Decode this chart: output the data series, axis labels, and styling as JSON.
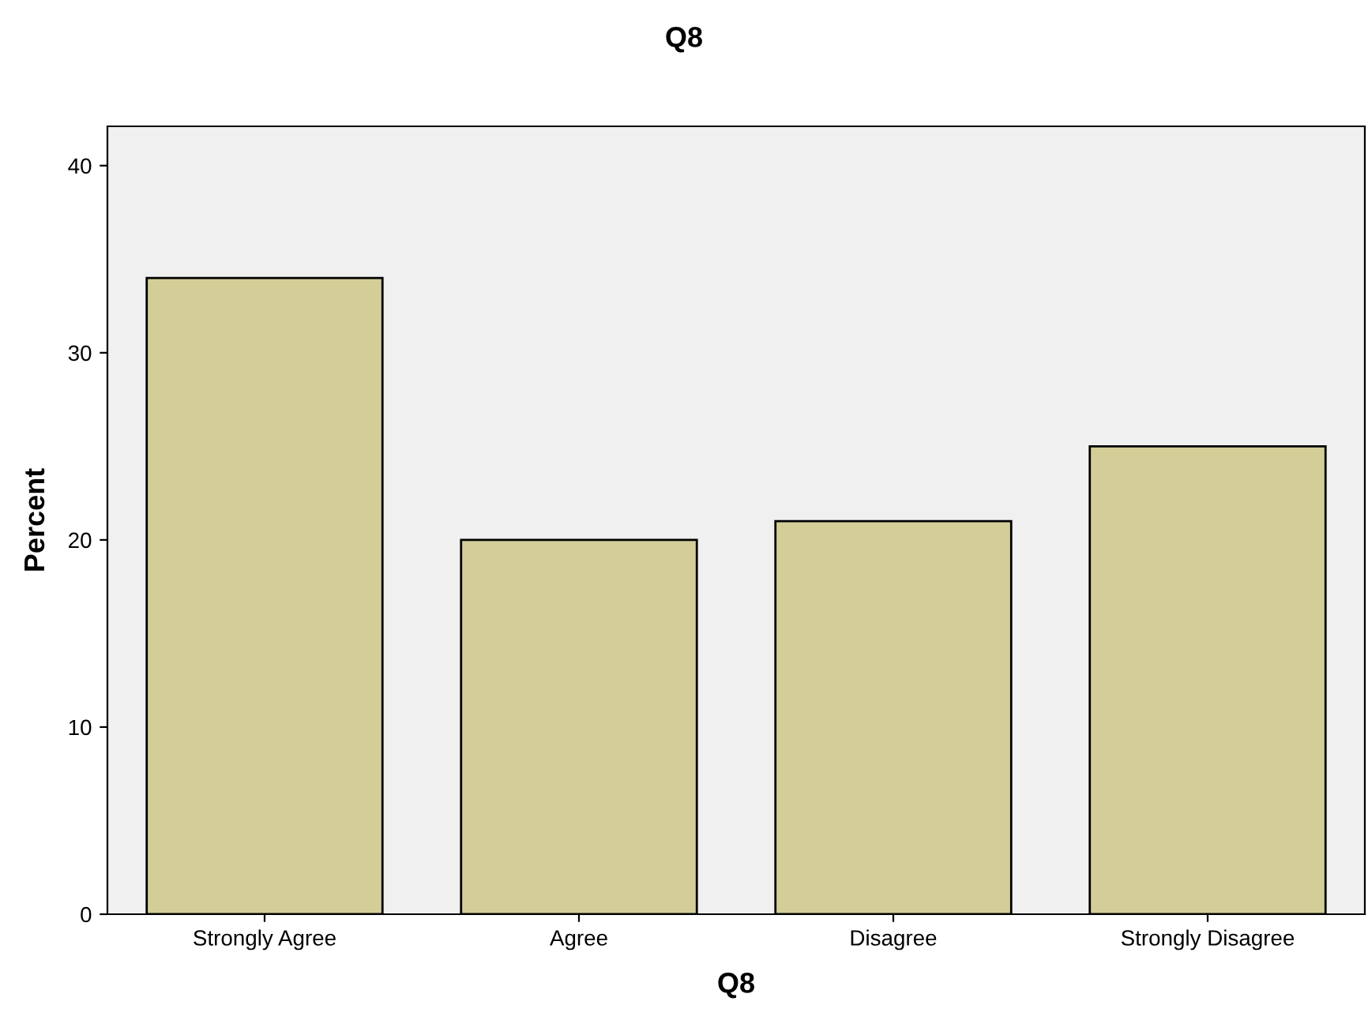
{
  "chart_data": {
    "type": "bar",
    "title": "Q8",
    "xlabel": "Q8",
    "ylabel": "Percent",
    "categories": [
      "Strongly Agree",
      "Agree",
      "Disagree",
      "Strongly Disagree"
    ],
    "values": [
      34,
      20,
      21,
      25
    ],
    "color": "#d3ce98",
    "ylim": [
      0,
      42.1
    ],
    "yticks": [
      0,
      10,
      20,
      30,
      40
    ],
    "grid": false,
    "legend": false
  }
}
